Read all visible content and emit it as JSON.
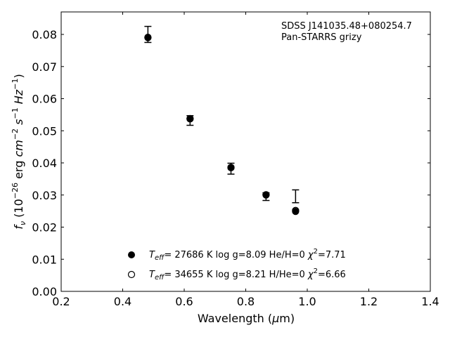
{
  "chart_data": {
    "type": "scatter",
    "xlabel": "Wavelength (μm)",
    "ylabel": "f_ν (10^-26 erg cm^-2 s^-1 Hz^-1)",
    "xlim": [
      0.2,
      1.4
    ],
    "ylim": [
      0.0,
      0.087
    ],
    "x_ticks": [
      0.2,
      0.4,
      0.6,
      0.8,
      1.0,
      1.2,
      1.4
    ],
    "x_tick_labels": [
      "0.2",
      "0.4",
      "0.6",
      "0.8",
      "1.0",
      "1.2",
      "1.4"
    ],
    "y_ticks": [
      0.0,
      0.01,
      0.02,
      0.03,
      0.04,
      0.05,
      0.06,
      0.07,
      0.08
    ],
    "y_tick_labels": [
      "0.00",
      "0.01",
      "0.02",
      "0.03",
      "0.04",
      "0.05",
      "0.06",
      "0.07",
      "0.08"
    ],
    "grid": false,
    "legend_position": "bottom-center",
    "annotations": [
      "SDSS J141035.48+080254.7",
      "Pan-STARRS grizy"
    ],
    "observed": {
      "x": [
        0.482,
        0.619,
        0.752,
        0.866,
        0.962
      ],
      "y": [
        0.08,
        0.0532,
        0.0382,
        0.0295,
        0.0296
      ],
      "yerr": [
        0.0025,
        0.0015,
        0.0017,
        0.0012,
        0.002
      ]
    },
    "series": [
      {
        "name": "T_eff= 27686 K  log g=8.09  He/H=0  χ²=7.71",
        "marker": "filled-circle",
        "x": [
          0.482,
          0.619,
          0.752,
          0.866,
          0.962
        ],
        "y": [
          0.079,
          0.0537,
          0.0385,
          0.03,
          0.0249
        ]
      },
      {
        "name": "T_eff= 34655 K  log g=8.21  H/He=0  χ²=6.66",
        "marker": "open-circle",
        "x": [
          0.482,
          0.619,
          0.752,
          0.866,
          0.962
        ],
        "y": [
          0.0791,
          0.0538,
          0.0386,
          0.0301,
          0.0252
        ]
      }
    ],
    "colors": {
      "marker": "#000000",
      "errorbar": "#000000",
      "axis": "#000000"
    }
  }
}
